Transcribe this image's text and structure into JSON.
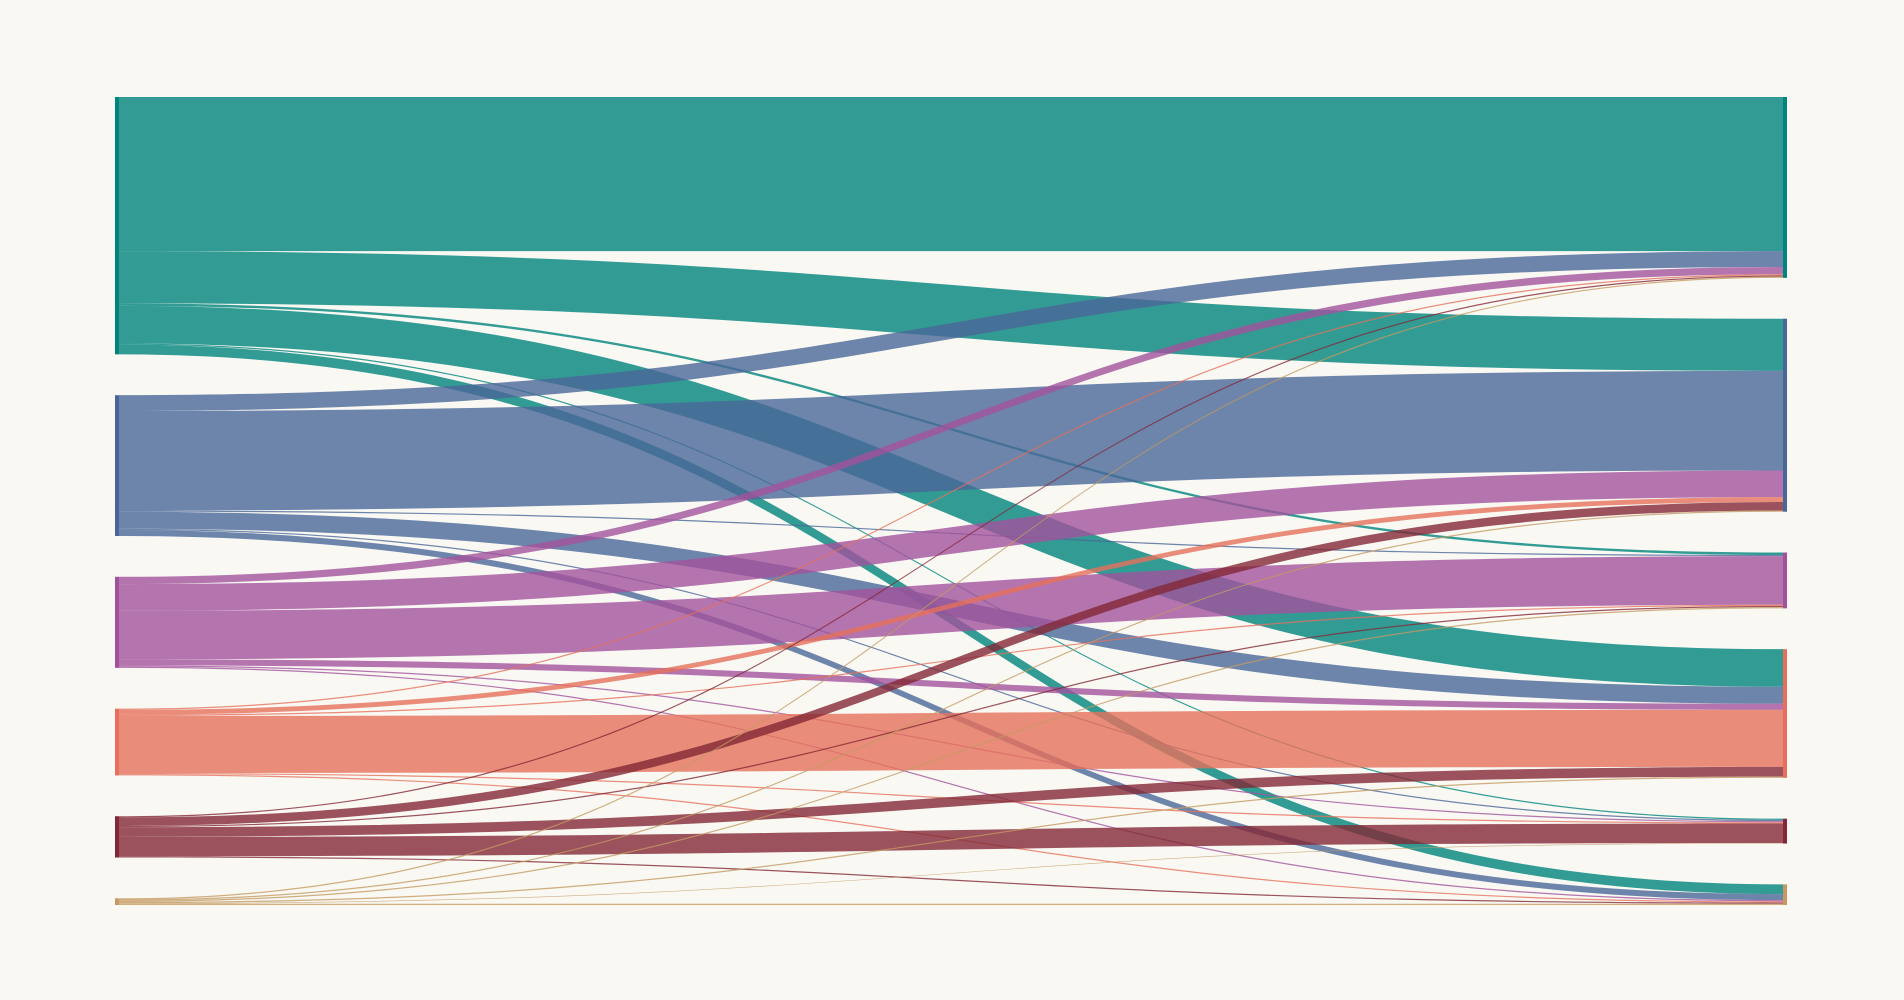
{
  "chart_data": {
    "type": "sankey",
    "sources": [
      {
        "color": "#00857c"
      },
      {
        "color": "#4a6699"
      },
      {
        "color": "#a2529c"
      },
      {
        "color": "#e6705b"
      },
      {
        "color": "#832836"
      },
      {
        "color": "#c49a62"
      }
    ],
    "targets": [
      {
        "color": "#00857c"
      },
      {
        "color": "#4a6699"
      },
      {
        "color": "#a2529c"
      },
      {
        "color": "#e6705b"
      },
      {
        "color": "#832836"
      },
      {
        "color": "#c49a62"
      }
    ],
    "flows": [
      [
        127,
        43,
        2,
        31,
        1,
        8
      ],
      [
        13,
        82,
        1,
        14,
        1,
        5
      ],
      [
        6,
        22,
        40,
        5,
        1,
        1
      ],
      [
        1,
        4,
        1,
        47,
        1,
        1
      ],
      [
        1,
        7,
        1,
        8,
        16,
        1
      ],
      [
        1,
        1,
        1,
        1,
        0.5,
        1
      ]
    ],
    "link_opacity": 0.8,
    "background": "#f9f8f3"
  }
}
